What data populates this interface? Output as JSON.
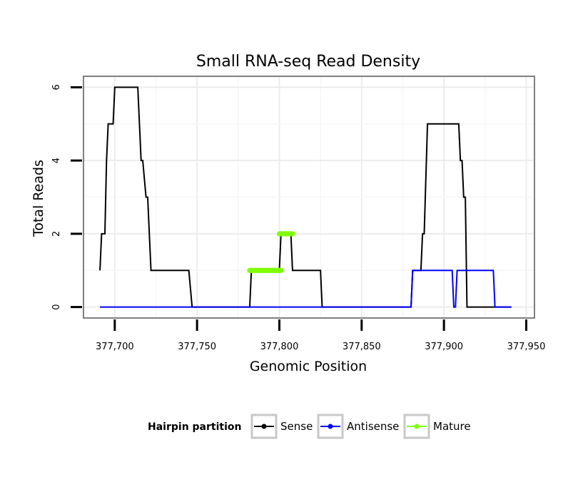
{
  "chart_data": {
    "type": "line",
    "title": "Small RNA-seq Read Density",
    "xlabel": "Genomic Position",
    "ylabel": "Total Reads",
    "xlim": [
      377681,
      377955
    ],
    "ylim": [
      -0.3,
      6.3
    ],
    "x_ticks": [
      377700,
      377750,
      377800,
      377850,
      377900,
      377950
    ],
    "x_tick_labels": [
      "377,700",
      "377,750",
      "377,800",
      "377,850",
      "377,900",
      "377,950"
    ],
    "y_ticks": [
      0,
      2,
      4,
      6
    ],
    "y_tick_labels": [
      "0",
      "2",
      "4",
      "6"
    ],
    "legend": {
      "title": "Hairpin partition",
      "position": "bottom",
      "entries": [
        "Sense",
        "Antisense",
        "Mature"
      ]
    },
    "series": [
      {
        "name": "Sense",
        "color": "#000000",
        "points": [
          [
            377691,
            1
          ],
          [
            377692,
            2
          ],
          [
            377694,
            2
          ],
          [
            377695,
            4
          ],
          [
            377696,
            5
          ],
          [
            377699,
            5
          ],
          [
            377700,
            6
          ],
          [
            377714,
            6
          ],
          [
            377716,
            4
          ],
          [
            377717,
            4
          ],
          [
            377719,
            3
          ],
          [
            377720,
            3
          ],
          [
            377722,
            1
          ],
          [
            377745,
            1
          ],
          [
            377747,
            0
          ],
          [
            377782,
            0
          ],
          [
            377783,
            1
          ],
          [
            377800,
            1
          ],
          [
            377801,
            2
          ],
          [
            377807,
            2
          ],
          [
            377808,
            1
          ],
          [
            377825,
            1
          ],
          [
            377826,
            0
          ],
          [
            377880,
            0
          ],
          [
            377881,
            1
          ],
          [
            377886,
            1
          ],
          [
            377887,
            2
          ],
          [
            377888,
            2
          ],
          [
            377890,
            5
          ],
          [
            377909,
            5
          ],
          [
            377910,
            4
          ],
          [
            377911,
            4
          ],
          [
            377912,
            3
          ],
          [
            377913,
            3
          ],
          [
            377914,
            0
          ],
          [
            377941,
            0
          ]
        ]
      },
      {
        "name": "Antisense",
        "color": "#0000ff",
        "points": [
          [
            377691,
            0
          ],
          [
            377880,
            0
          ],
          [
            377881,
            1
          ],
          [
            377905,
            1
          ],
          [
            377906,
            0
          ],
          [
            377907,
            0
          ],
          [
            377908,
            1
          ],
          [
            377930,
            1
          ],
          [
            377931,
            0
          ],
          [
            377941,
            0
          ]
        ]
      },
      {
        "name": "Mature",
        "color": "#7fff00",
        "segments": [
          {
            "x": [
              377782,
              377801
            ],
            "y": 1
          },
          {
            "x": [
              377800,
              377808
            ],
            "y": 2
          }
        ]
      }
    ]
  }
}
